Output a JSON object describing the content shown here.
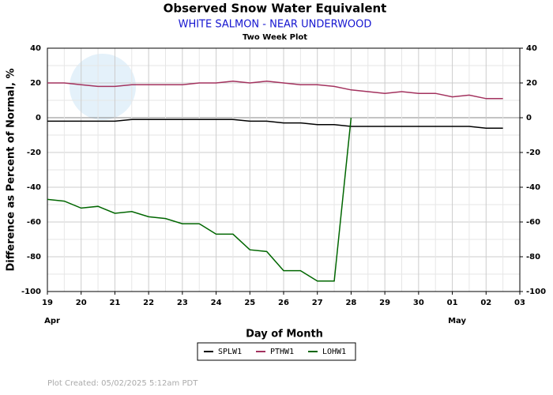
{
  "chart_data": {
    "type": "line",
    "title": "Observed Snow Water Equivalent",
    "subtitle": "WHITE SALMON - NEAR UNDERWOOD",
    "plot_label": "Two Week Plot",
    "x_label": "Day of Month",
    "y_label": "Difference as Percent of Normal, %",
    "month_labels": [
      "Apr",
      "May"
    ],
    "footer": "Plot Created: 05/02/2025 5:12am PDT",
    "categories": [
      "19",
      null,
      "20",
      null,
      "21",
      null,
      "22",
      null,
      "23",
      null,
      "24",
      null,
      "25",
      null,
      "26",
      null,
      "27",
      null,
      "28",
      null,
      "29",
      null,
      "30",
      null,
      "01",
      null,
      "02",
      null,
      "03"
    ],
    "series": [
      {
        "name": "SPLW1",
        "color": "#000000",
        "values": [
          -2,
          -2,
          -2,
          -2,
          -2,
          -1,
          -1,
          -1,
          -1,
          -1,
          -1,
          -1,
          -2,
          -2,
          -3,
          -3,
          -4,
          -4,
          -5,
          -5,
          -5,
          -5,
          -5,
          -5,
          -5,
          -5,
          -6,
          -6,
          null
        ]
      },
      {
        "name": "PTHW1",
        "color": "#a3325e",
        "values": [
          20,
          20,
          19,
          18,
          18,
          19,
          19,
          19,
          19,
          20,
          20,
          21,
          20,
          21,
          20,
          19,
          19,
          18,
          16,
          15,
          14,
          15,
          14,
          14,
          12,
          13,
          11,
          11,
          null
        ]
      },
      {
        "name": "LOHW1",
        "color": "#006600",
        "values": [
          -47,
          -48,
          -52,
          -51,
          -55,
          -54,
          -57,
          -58,
          -61,
          -61,
          -67,
          -67,
          -76,
          -77,
          -88,
          -88,
          -94,
          -94,
          0,
          null,
          null,
          null,
          null,
          null,
          null,
          null,
          null,
          null,
          null
        ]
      }
    ],
    "ylim": [
      -100,
      40
    ],
    "yticks": [
      -100,
      -80,
      -60,
      -40,
      -20,
      0,
      20,
      40
    ],
    "y2lim": [
      -100,
      40
    ],
    "y2ticks": [
      -100,
      -80,
      -60,
      -40,
      -20,
      0,
      20,
      40
    ],
    "grid": true
  }
}
